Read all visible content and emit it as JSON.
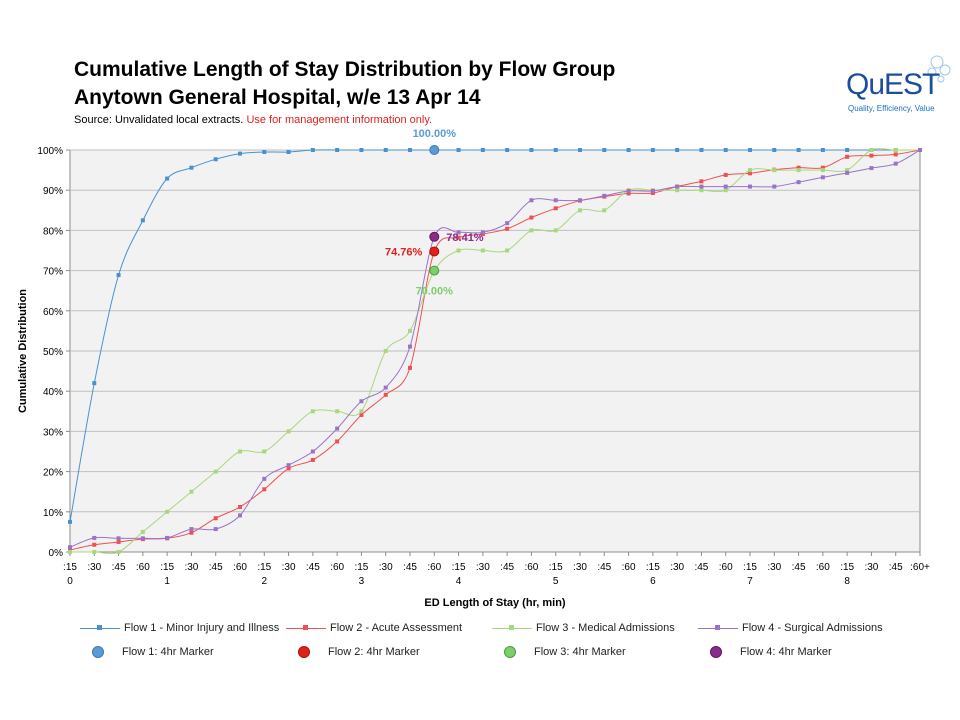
{
  "title_line1": "Cumulative Length of Stay Distribution by Flow Group",
  "title_line2": "Anytown General Hospital, w/e 13 Apr 14",
  "source_text": "Source:  Unvalidated local extracts.",
  "source_warning": "Use for management  information only.",
  "logo": {
    "name": "QuEST",
    "tagline": "Quality, Efficiency, Value"
  },
  "chart_data": {
    "type": "line",
    "xlabel": "ED Length of Stay (hr, min)",
    "ylabel": "Cumulative Distribution",
    "ylim": [
      0,
      100
    ],
    "yticks": [
      "0%",
      "10%",
      "20%",
      "30%",
      "40%",
      "50%",
      "60%",
      "70%",
      "80%",
      "90%",
      "100%"
    ],
    "xtick_labels": [
      ":15",
      ":30",
      ":45",
      ":60",
      ":15",
      ":30",
      ":45",
      ":60",
      ":15",
      ":30",
      ":45",
      ":60",
      ":15",
      ":30",
      ":45",
      ":60",
      ":15",
      ":30",
      ":45",
      ":60",
      ":15",
      ":30",
      ":45",
      ":60",
      ":15",
      ":30",
      ":45",
      ":60",
      ":15",
      ":30",
      ":45",
      ":60",
      ":15",
      ":30",
      ":45",
      ":60+"
    ],
    "hour_labels": [
      "0",
      "1",
      "2",
      "3",
      "4",
      "5",
      "6",
      "7",
      "8"
    ],
    "grid": true,
    "legend_position": "bottom",
    "series": [
      {
        "name": "Flow 1 - Minor Injury and Illness",
        "color": "#4a90cf",
        "values": [
          7.5,
          42,
          68.9,
          82.5,
          92.9,
          95.6,
          97.7,
          99.1,
          99.5,
          99.5,
          100,
          100,
          100,
          100,
          100,
          100,
          100,
          100,
          100,
          100,
          100,
          100,
          100,
          100,
          100,
          100,
          100,
          100,
          100,
          100,
          100,
          100,
          100,
          100,
          100,
          100
        ]
      },
      {
        "name": "Flow 2 - Acute Assessment",
        "color": "#f05050",
        "values": [
          0.5,
          1.8,
          2.5,
          3.2,
          3.4,
          4.8,
          8.4,
          11.2,
          15.6,
          20.8,
          22.9,
          27.5,
          34.1,
          39.1,
          45.8,
          74.76,
          78.2,
          79.1,
          80.4,
          83.2,
          85.5,
          87.4,
          88.4,
          89.2,
          89.3,
          90.9,
          92.2,
          93.8,
          94.2,
          95.1,
          95.6,
          95.6,
          98.3,
          98.6,
          98.9,
          100
        ]
      },
      {
        "name": "Flow 3 - Medical Admissions",
        "color": "#a8d87e",
        "values": [
          0,
          0,
          0,
          5,
          10,
          15,
          20,
          25,
          25,
          30,
          35,
          35,
          35,
          50,
          55,
          70,
          75,
          75,
          75,
          80,
          80,
          85,
          85,
          90,
          90,
          90,
          90,
          90,
          95,
          95,
          95,
          95,
          95,
          100,
          100,
          100
        ]
      },
      {
        "name": "Flow 4 - Surgical Admissions",
        "color": "#9a72c8",
        "values": [
          1.2,
          3.5,
          3.4,
          3.4,
          3.5,
          5.7,
          5.7,
          9.1,
          18.2,
          21.6,
          25,
          30.7,
          37.5,
          40.9,
          51.1,
          78.41,
          79.5,
          79.5,
          81.8,
          87.5,
          87.5,
          87.5,
          88.6,
          89.8,
          89.8,
          90.9,
          90.9,
          90.9,
          90.9,
          90.9,
          92,
          93.2,
          94.3,
          95.5,
          96.6,
          100
        ]
      }
    ],
    "markers": [
      {
        "name": "Flow 1: 4hr Marker",
        "value": 100,
        "label": "100.00%",
        "color": "#5b9bd5",
        "border": "#3a78b5"
      },
      {
        "name": "Flow 2: 4hr Marker",
        "value": 74.76,
        "label": "74.76%",
        "color": "#e0201b",
        "border": "#b0100b"
      },
      {
        "name": "Flow 3: 4hr Marker",
        "value": 70.0,
        "label": "70.00%",
        "color": "#7dcf6a",
        "border": "#4f9a40"
      },
      {
        "name": "Flow 4: 4hr Marker",
        "value": 78.41,
        "label": "78.41%",
        "color": "#8a2a8a",
        "border": "#5e1a5e"
      }
    ],
    "marker_x_index": 15
  }
}
